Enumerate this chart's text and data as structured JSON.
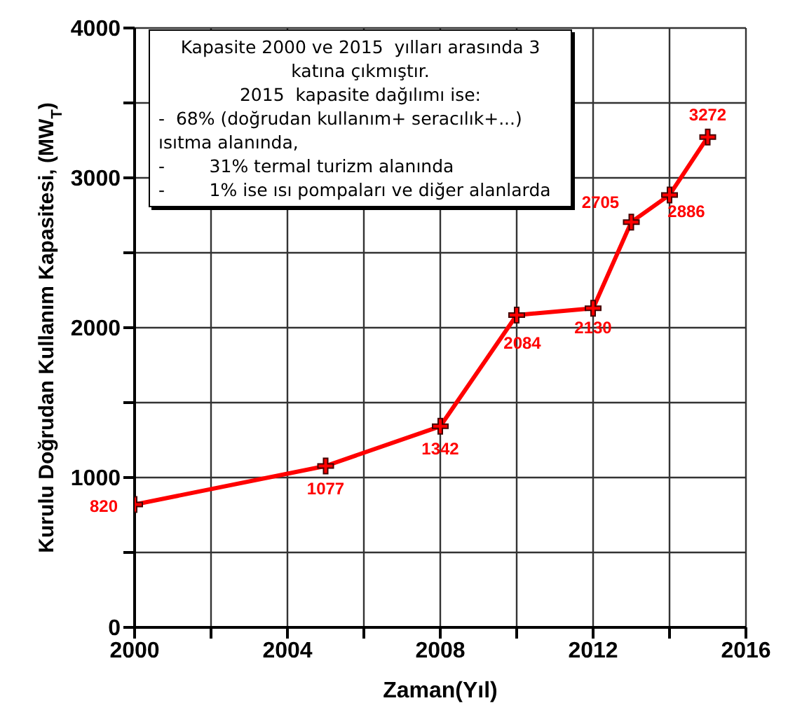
{
  "chart_data": {
    "type": "line",
    "xlabel": "Zaman(Yıl)",
    "ylabel": "Kurulu Doğrudan Kullanım Kapasitesi, (MW$_{T}$)",
    "x": [
      2000,
      2005,
      2008,
      2010,
      2012,
      2013,
      2014,
      2015
    ],
    "series": [
      {
        "color": "#ff0000",
        "values": [
          820,
          1077,
          1342,
          2084,
          2130,
          2705,
          2886,
          3272
        ]
      }
    ],
    "xlim": [
      2000,
      2016
    ],
    "xticks": [
      2000,
      {
        "value": 2002,
        "label": null
      },
      2004,
      {
        "value": 2006,
        "label": null
      },
      2008,
      {
        "value": 2010,
        "label": null
      },
      2012,
      {
        "value": 2014,
        "label": null
      },
      2016
    ],
    "ylim": [
      0,
      4000
    ],
    "yticks": [
      0,
      {
        "value": 500,
        "label": null
      },
      1000,
      {
        "value": 1500,
        "label": null
      },
      2000,
      {
        "value": 2500,
        "label": null
      },
      3000,
      {
        "value": 3500,
        "label": null
      },
      4000
    ],
    "grid": true,
    "marker": "cross",
    "line_style": "solid",
    "data_labels": true,
    "legend": false,
    "annotations": [
      "Kapasite 2000 ve 2015  yılları arasında 3 katına çıkmıştır.",
      "2015  kapasite dağılımı ise:",
      "-  68% (doğrudan kullanım+ seracılık+...) ısıtma alanında,",
      "-        31% termal turizm alanında",
      "-        1% ise ısı pompaları ve diğer alanlarda"
    ]
  }
}
